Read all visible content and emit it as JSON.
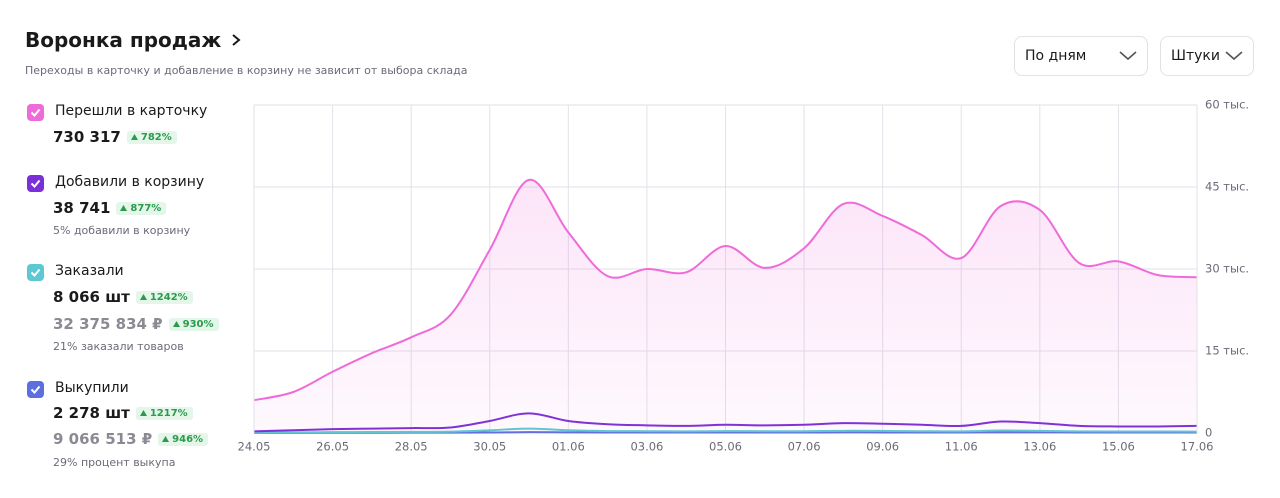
{
  "header": {
    "title": "Воронка продаж",
    "subtitle": "Переходы в карточку и добавление в корзину не зависит от выбора склада"
  },
  "controls": [
    "По дням",
    "Штуки"
  ],
  "sidebar": [
    {
      "total": "730 317",
      "change": "782%"
    },
    {
      "total": "38 741",
      "change": "877%",
      "note": "5% добавили в корзину"
    },
    {
      "total": "8 066 шт",
      "change": "1242%",
      "revenue": "32 375 834 ₽",
      "revenue_change": "930%",
      "note": "21% заказали товаров"
    },
    {
      "total": "2 278 шт",
      "change": "1217%",
      "revenue": "9 066 513 ₽",
      "revenue_change": "946%",
      "note": "29% процент выкупа"
    }
  ],
  "chart_data": {
    "type": "line",
    "categories": [
      "24.05",
      null,
      "26.05",
      null,
      "28.05",
      null,
      "30.05",
      null,
      "01.06",
      null,
      "03.06",
      null,
      "05.06",
      null,
      "07.06",
      null,
      "09.06",
      null,
      "11.06",
      null,
      "13.06",
      null,
      "15.06",
      null,
      "17.06"
    ],
    "series": [
      {
        "name": "Перешли в карточку",
        "color": "#ee6bd9",
        "values": [
          6000,
          7500,
          11200,
          14600,
          17500,
          21600,
          33500,
          46300,
          36700,
          28700,
          30000,
          29400,
          34200,
          30200,
          33800,
          41900,
          39700,
          36200,
          32000,
          41500,
          40800,
          31100,
          31400,
          28900,
          28500
        ]
      },
      {
        "name": "Добавили в корзину",
        "color": "#7b2fd6",
        "values": [
          300,
          500,
          700,
          800,
          900,
          1000,
          2200,
          3600,
          2200,
          1600,
          1400,
          1300,
          1500,
          1400,
          1500,
          1800,
          1700,
          1500,
          1300,
          2100,
          1800,
          1300,
          1200,
          1200,
          1300
        ]
      },
      {
        "name": "Заказали",
        "color": "#5cc8d3",
        "values": [
          100,
          120,
          150,
          180,
          200,
          250,
          500,
          800,
          500,
          350,
          330,
          300,
          350,
          320,
          330,
          400,
          380,
          330,
          300,
          450,
          400,
          300,
          280,
          270,
          260
        ]
      },
      {
        "name": "Выкупили",
        "color": "#5b6fe0",
        "values": [
          20,
          30,
          40,
          50,
          60,
          70,
          100,
          150,
          120,
          100,
          90,
          90,
          100,
          90,
          90,
          110,
          100,
          100,
          90,
          120,
          110,
          100,
          90,
          90,
          90
        ]
      }
    ],
    "ylim": [
      0,
      60000
    ],
    "yticks": [
      0,
      {
        "value": 15000,
        "label": "15 тыс."
      },
      {
        "value": 30000,
        "label": "30 тыс."
      },
      {
        "value": 45000,
        "label": "45 тыс."
      },
      {
        "value": 60000,
        "label": "60 тыс."
      }
    ],
    "grid": true,
    "area": true
  }
}
